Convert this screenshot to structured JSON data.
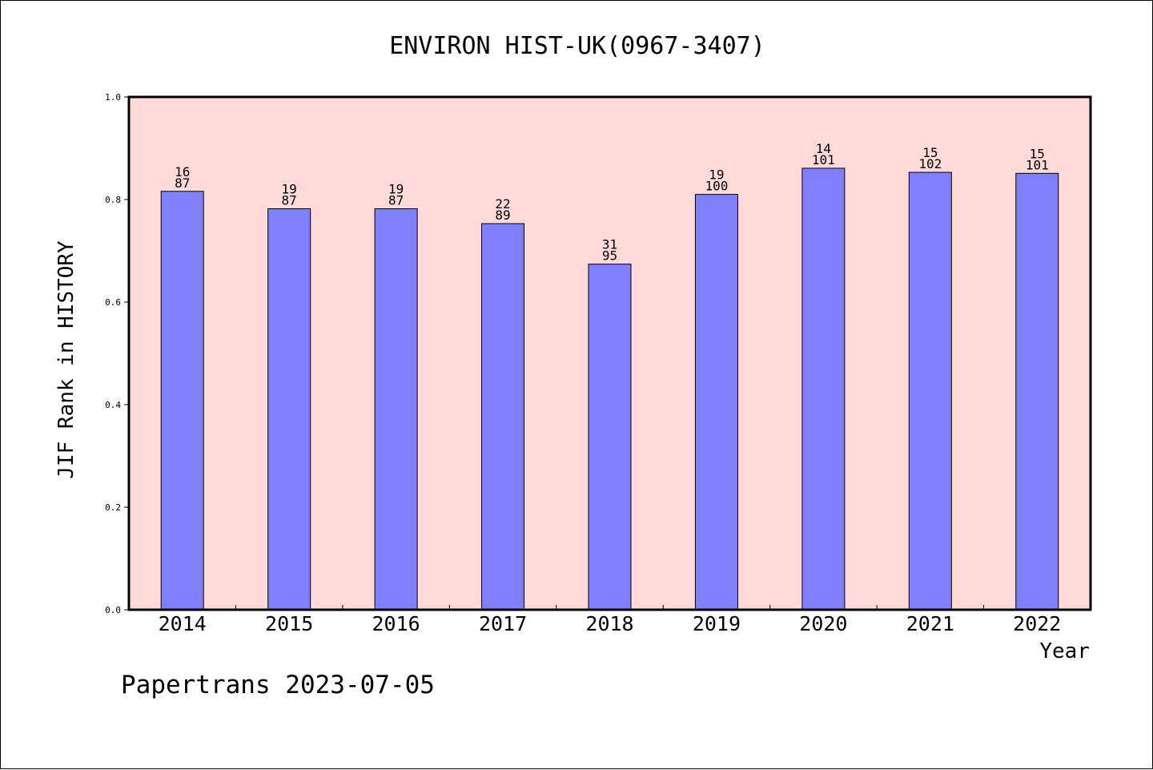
{
  "chart_data": {
    "type": "bar",
    "title": "ENVIRON HIST-UK(0967-3407)",
    "xlabel": "Year",
    "ylabel": "JIF Rank in HISTORY",
    "ylim": [
      0.0,
      1.0
    ],
    "yticks": [
      "0.0",
      "0.2",
      "0.4",
      "0.6",
      "0.8",
      "1.0"
    ],
    "categories": [
      "2014",
      "2015",
      "2016",
      "2017",
      "2018",
      "2019",
      "2020",
      "2021",
      "2022"
    ],
    "values": [
      0.816,
      0.782,
      0.782,
      0.753,
      0.674,
      0.81,
      0.861,
      0.853,
      0.851
    ],
    "rank": [
      "16",
      "19",
      "19",
      "22",
      "31",
      "19",
      "14",
      "15",
      "15"
    ],
    "total": [
      "87",
      "87",
      "87",
      "89",
      "95",
      "100",
      "101",
      "102",
      "101"
    ],
    "grid": false,
    "legend": "none",
    "colors": {
      "plot_background": "#ffdad8",
      "bar": "#8080ff",
      "bar_edge": "#000000"
    }
  },
  "footer": {
    "credit": "Papertrans 2023-07-05"
  }
}
